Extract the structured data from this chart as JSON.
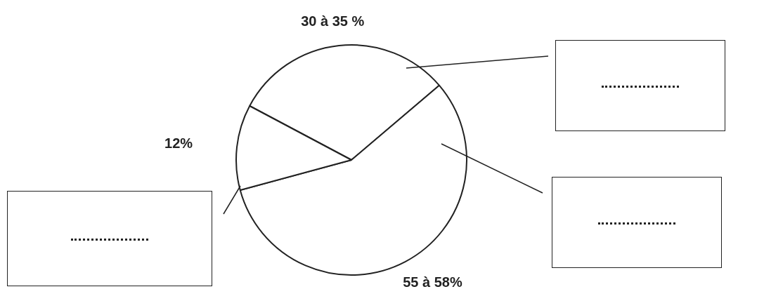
{
  "chart_data": {
    "type": "pie",
    "categories": [
      "30 à 35 %",
      "55 à 58%",
      "12%"
    ],
    "values": [
      31,
      57,
      12
    ],
    "colors": [
      "#ffffff",
      "#ffffff",
      "#ffffff"
    ]
  }
}
